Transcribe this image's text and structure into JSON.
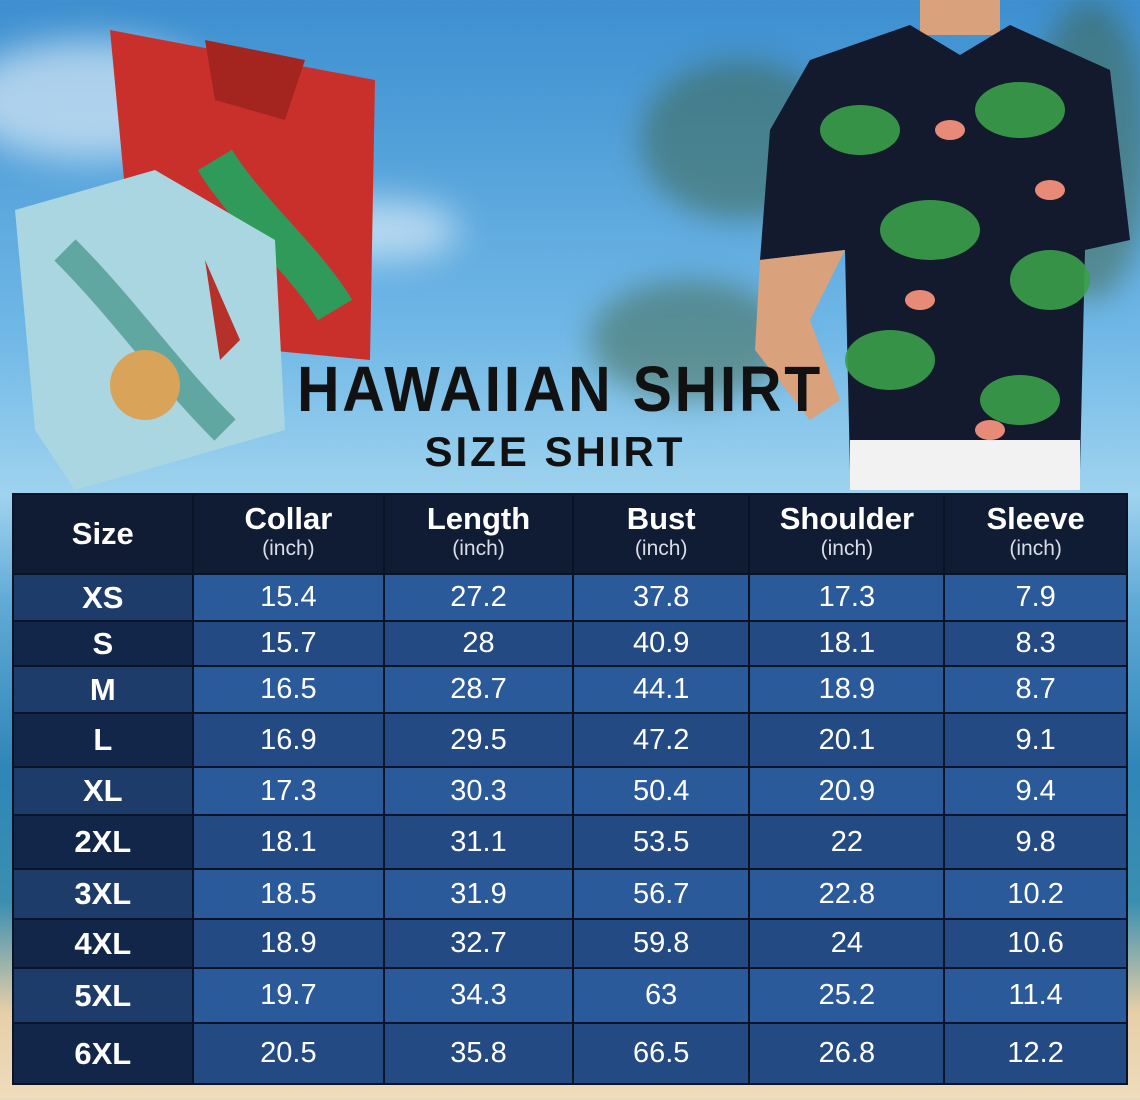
{
  "title": "HAWAIIAN SHIRT",
  "subtitle": "SIZE SHIRT",
  "colors": {
    "header_bg": "#101c33",
    "row_light": "#2b5a9a",
    "row_dark": "#234a82",
    "size_col": "#12264a"
  },
  "table": {
    "headers": [
      {
        "label": "Size",
        "unit": ""
      },
      {
        "label": "Collar",
        "unit": "(inch)"
      },
      {
        "label": "Length",
        "unit": "(inch)"
      },
      {
        "label": "Bust",
        "unit": "(inch)"
      },
      {
        "label": "Shoulder",
        "unit": "(inch)"
      },
      {
        "label": "Sleeve",
        "unit": "(inch)"
      }
    ],
    "rows": [
      [
        "XS",
        "15.4",
        "27.2",
        "37.8",
        "17.3",
        "7.9"
      ],
      [
        "S",
        "15.7",
        "28",
        "40.9",
        "18.1",
        "8.3"
      ],
      [
        "M",
        "16.5",
        "28.7",
        "44.1",
        "18.9",
        "8.7"
      ],
      [
        "L",
        "16.9",
        "29.5",
        "47.2",
        "20.1",
        "9.1"
      ],
      [
        "XL",
        "17.3",
        "30.3",
        "50.4",
        "20.9",
        "9.4"
      ],
      [
        "2XL",
        "18.1",
        "31.1",
        "53.5",
        "22",
        "9.8"
      ],
      [
        "3XL",
        "18.5",
        "31.9",
        "56.7",
        "22.8",
        "10.2"
      ],
      [
        "4XL",
        "18.9",
        "32.7",
        "59.8",
        "24",
        "10.6"
      ],
      [
        "5XL",
        "19.7",
        "34.3",
        "63",
        "25.2",
        "11.4"
      ],
      [
        "6XL",
        "20.5",
        "35.8",
        "66.5",
        "26.8",
        "12.2"
      ]
    ]
  }
}
